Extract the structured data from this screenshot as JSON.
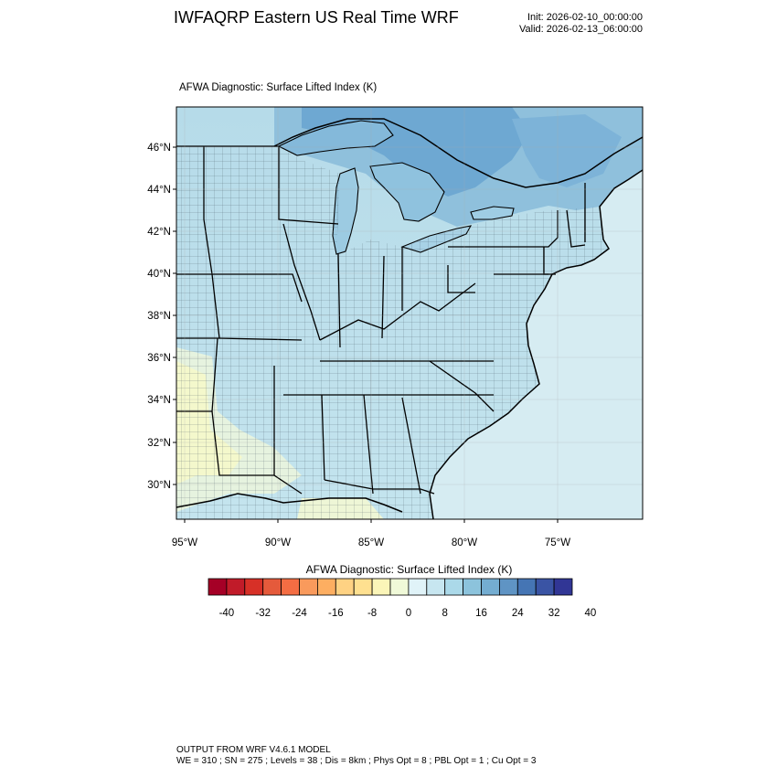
{
  "header": {
    "title": "IWFAQRP Eastern US Real Time WRF",
    "init": "Init: 2026-02-10_00:00:00",
    "valid": "Valid: 2026-02-13_06:00:00"
  },
  "plot": {
    "title": "AFWA Diagnostic: Surface Lifted Index   (K)",
    "lat_labels": [
      "46°N",
      "44°N",
      "42°N",
      "40°N",
      "38°N",
      "36°N",
      "34°N",
      "32°N",
      "30°N"
    ],
    "lon_labels": [
      "95°W",
      "90°W",
      "85°W",
      "80°W",
      "75°W"
    ]
  },
  "colorbar": {
    "title": "AFWA Diagnostic: Surface Lifted Index  (K)",
    "labels": [
      "-40",
      "-32",
      "-24",
      "-16",
      "-8",
      "0",
      "8",
      "16",
      "24",
      "32",
      "40"
    ],
    "colors": [
      "#a50026",
      "#c11b29",
      "#d73027",
      "#e55a3b",
      "#f46d43",
      "#f99a5c",
      "#fdae61",
      "#fed283",
      "#fee090",
      "#fbf5b8",
      "#f0f9d8",
      "#e0f3f8",
      "#c7e6f0",
      "#abd9e9",
      "#8cc3dc",
      "#74add1",
      "#5f94c4",
      "#4575b4",
      "#3a54a4",
      "#313695"
    ]
  },
  "footer": {
    "line1": "OUTPUT FROM WRF V4.6.1 MODEL",
    "line2": "WE = 310 ; SN = 275 ; Levels = 38 ; Dis = 8km ; Phys Opt = 8 ; PBL Opt = 1 ; Cu Opt = 3"
  }
}
